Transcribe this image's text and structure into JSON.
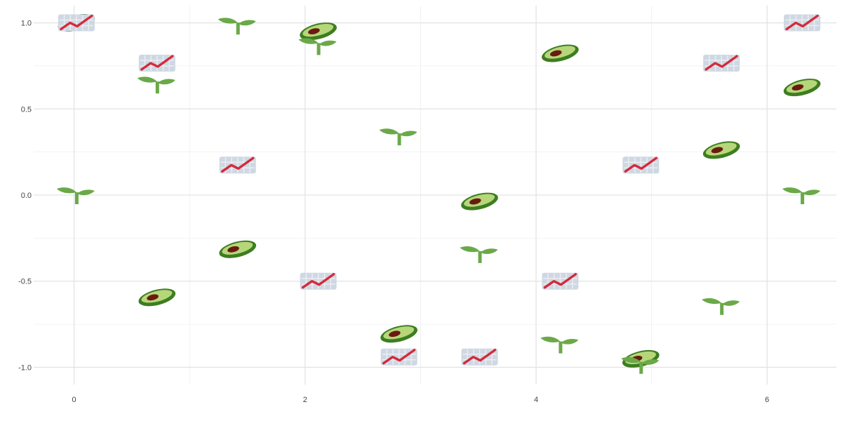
{
  "chart_data": {
    "type": "scatter",
    "title": "",
    "xlabel": "",
    "ylabel": "",
    "xlim": [
      -0.35,
      6.6
    ],
    "ylim": [
      -1.1,
      1.1
    ],
    "x_ticks": [
      0,
      2,
      4,
      6
    ],
    "x_tick_labels": [
      "0",
      "2",
      "4",
      "6"
    ],
    "y_ticks": [
      -1.0,
      -0.5,
      0.0,
      0.5,
      1.0
    ],
    "y_tick_labels": [
      "-1.0",
      "-0.5",
      "0.0",
      "0.5",
      "1.0"
    ],
    "grid": true,
    "colors": {
      "avocado_skin": "#3e7d22",
      "avocado_flesh": "#b5d77a",
      "avocado_pit": "#6b1a10",
      "seedling": "#6aa948",
      "chart_icon_bg": "#cfd8e2",
      "chart_icon_line": "#d42a3c"
    },
    "series": [
      {
        "marker": "avocado-icon",
        "x": [
          0.0,
          0.698,
          1.396,
          2.094,
          2.793,
          3.491,
          4.189,
          4.887,
          5.585,
          6.283
        ],
        "y": [
          1.0,
          -0.594,
          -0.315,
          0.951,
          -0.806,
          -0.037,
          0.823,
          -0.951,
          0.261,
          0.625
        ]
      },
      {
        "marker": "seedling-icon",
        "x": [
          0.0,
          0.698,
          1.396,
          2.094,
          2.793,
          3.491,
          4.189,
          4.887,
          5.585,
          6.283
        ],
        "y": [
          0.0,
          0.643,
          0.985,
          0.866,
          0.342,
          -0.342,
          -0.866,
          -0.985,
          -0.643,
          0.0
        ]
      },
      {
        "marker": "chart-increasing-icon",
        "x": [
          0.0,
          0.698,
          1.396,
          2.094,
          2.793,
          3.491,
          4.189,
          4.887,
          5.585,
          6.283
        ],
        "y": [
          1.0,
          0.766,
          0.174,
          -0.5,
          -0.94,
          -0.94,
          -0.5,
          0.174,
          0.766,
          1.0
        ]
      }
    ]
  }
}
